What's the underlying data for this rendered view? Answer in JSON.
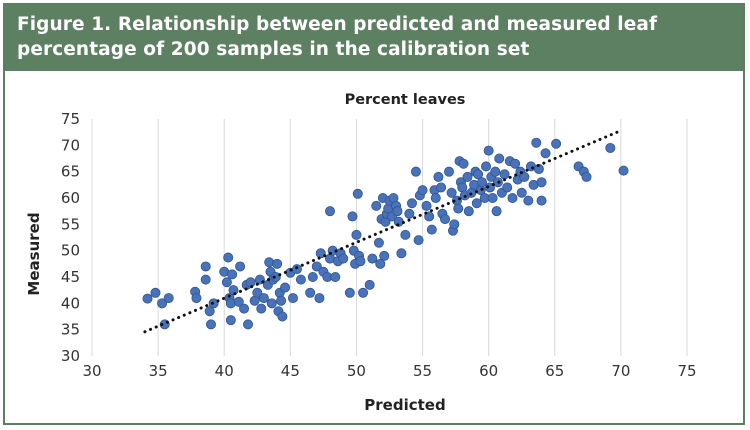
{
  "figure": {
    "caption": "Figure 1. Relationship between predicted and measured leaf percentage of 200 samples in the calibration set"
  },
  "colors": {
    "header_bg": "#5d8062",
    "border": "#5a7e5e",
    "point_fill": "#4a72b8",
    "point_stroke": "#2f5597",
    "trendline": "#111111"
  },
  "chart_data": {
    "type": "scatter",
    "title": "Percent leaves",
    "xlabel": "Predicted",
    "ylabel": "Measured",
    "xlim": [
      30,
      75
    ],
    "ylim": [
      30,
      75
    ],
    "xticks": [
      30,
      35,
      40,
      45,
      50,
      55,
      60,
      65,
      70,
      75
    ],
    "yticks": [
      30,
      35,
      40,
      45,
      50,
      55,
      60,
      65,
      70,
      75
    ],
    "grid": "vertical",
    "trendline": {
      "style": "dotted",
      "x": [
        34,
        70
      ],
      "y": [
        34.6,
        72.8
      ]
    },
    "series": [
      {
        "points": [
          [
            34.2,
            40.9
          ],
          [
            34.8,
            42.0
          ],
          [
            35.3,
            40.0
          ],
          [
            35.5,
            36.0
          ],
          [
            35.8,
            41.0
          ],
          [
            37.8,
            42.2
          ],
          [
            37.9,
            41.0
          ],
          [
            38.6,
            47.0
          ],
          [
            38.6,
            44.5
          ],
          [
            38.9,
            38.5
          ],
          [
            39.0,
            36.0
          ],
          [
            39.2,
            40.0
          ],
          [
            40.0,
            46.0
          ],
          [
            40.2,
            44.0
          ],
          [
            40.3,
            48.7
          ],
          [
            40.4,
            41.0
          ],
          [
            40.5,
            40.0
          ],
          [
            40.5,
            36.8
          ],
          [
            40.6,
            45.5
          ],
          [
            40.7,
            42.5
          ],
          [
            41.1,
            40.3
          ],
          [
            41.2,
            47.0
          ],
          [
            41.5,
            39.0
          ],
          [
            41.7,
            43.5
          ],
          [
            41.8,
            36.0
          ],
          [
            42.0,
            44.0
          ],
          [
            42.3,
            40.5
          ],
          [
            42.5,
            42.0
          ],
          [
            42.7,
            44.5
          ],
          [
            42.8,
            39.0
          ],
          [
            43.0,
            41.0
          ],
          [
            43.3,
            43.5
          ],
          [
            43.4,
            47.8
          ],
          [
            43.5,
            46.0
          ],
          [
            43.6,
            40.0
          ],
          [
            43.7,
            44.5
          ],
          [
            43.9,
            45.0
          ],
          [
            44.0,
            47.5
          ],
          [
            44.1,
            38.5
          ],
          [
            44.2,
            42.0
          ],
          [
            44.3,
            40.5
          ],
          [
            44.4,
            37.5
          ],
          [
            44.6,
            43.0
          ],
          [
            45.0,
            45.8
          ],
          [
            45.2,
            41.0
          ],
          [
            45.5,
            46.5
          ],
          [
            45.8,
            44.5
          ],
          [
            46.5,
            42.0
          ],
          [
            46.7,
            45.0
          ],
          [
            47.0,
            47.0
          ],
          [
            47.2,
            41.0
          ],
          [
            47.3,
            49.5
          ],
          [
            47.5,
            46.0
          ],
          [
            47.8,
            45.0
          ],
          [
            48.0,
            57.5
          ],
          [
            48.0,
            48.5
          ],
          [
            48.2,
            50.0
          ],
          [
            48.4,
            45.0
          ],
          [
            48.6,
            48.0
          ],
          [
            48.8,
            49.5
          ],
          [
            49.0,
            48.5
          ],
          [
            49.5,
            42.0
          ],
          [
            49.7,
            56.5
          ],
          [
            49.8,
            50.0
          ],
          [
            49.9,
            47.5
          ],
          [
            50.0,
            53.0
          ],
          [
            50.1,
            60.8
          ],
          [
            50.2,
            49.0
          ],
          [
            50.3,
            48.0
          ],
          [
            50.5,
            42.0
          ],
          [
            51.0,
            43.5
          ],
          [
            51.2,
            48.5
          ],
          [
            51.5,
            58.5
          ],
          [
            51.7,
            51.5
          ],
          [
            51.8,
            47.5
          ],
          [
            51.9,
            56.0
          ],
          [
            52.0,
            60.0
          ],
          [
            52.1,
            49.0
          ],
          [
            52.2,
            55.5
          ],
          [
            52.3,
            57.0
          ],
          [
            52.4,
            58.0
          ],
          [
            52.5,
            59.5
          ],
          [
            52.7,
            56.5
          ],
          [
            52.8,
            60.0
          ],
          [
            53.0,
            58.5
          ],
          [
            53.1,
            57.5
          ],
          [
            53.2,
            55.5
          ],
          [
            53.4,
            49.5
          ],
          [
            53.7,
            53.0
          ],
          [
            54.0,
            57.0
          ],
          [
            54.2,
            59.0
          ],
          [
            54.5,
            65.0
          ],
          [
            54.7,
            52.0
          ],
          [
            54.8,
            60.5
          ],
          [
            55.0,
            61.5
          ],
          [
            55.3,
            58.5
          ],
          [
            55.5,
            56.5
          ],
          [
            55.7,
            54.0
          ],
          [
            55.9,
            61.5
          ],
          [
            56.0,
            60.0
          ],
          [
            56.2,
            64.0
          ],
          [
            56.4,
            62.0
          ],
          [
            56.5,
            57.0
          ],
          [
            56.7,
            56.0
          ],
          [
            57.0,
            65.0
          ],
          [
            57.2,
            61.0
          ],
          [
            57.3,
            53.8
          ],
          [
            57.4,
            55.0
          ],
          [
            57.6,
            59.5
          ],
          [
            57.7,
            58.0
          ],
          [
            57.8,
            67.0
          ],
          [
            57.9,
            63.0
          ],
          [
            58.0,
            62.0
          ],
          [
            58.1,
            66.5
          ],
          [
            58.2,
            60.5
          ],
          [
            58.4,
            64.0
          ],
          [
            58.5,
            57.5
          ],
          [
            58.7,
            61.0
          ],
          [
            58.9,
            62.5
          ],
          [
            59.0,
            65.0
          ],
          [
            59.1,
            59.0
          ],
          [
            59.2,
            64.5
          ],
          [
            59.4,
            61.5
          ],
          [
            59.5,
            63.0
          ],
          [
            59.7,
            60.0
          ],
          [
            59.8,
            66.0
          ],
          [
            60.0,
            69.0
          ],
          [
            60.1,
            62.0
          ],
          [
            60.2,
            64.0
          ],
          [
            60.3,
            60.0
          ],
          [
            60.5,
            65.0
          ],
          [
            60.6,
            57.5
          ],
          [
            60.7,
            63.0
          ],
          [
            60.8,
            67.5
          ],
          [
            61.0,
            61.0
          ],
          [
            61.2,
            64.5
          ],
          [
            61.4,
            62.0
          ],
          [
            61.6,
            67.0
          ],
          [
            61.8,
            60.0
          ],
          [
            62.0,
            66.5
          ],
          [
            62.2,
            63.5
          ],
          [
            62.4,
            65.0
          ],
          [
            62.5,
            61.0
          ],
          [
            62.7,
            64.0
          ],
          [
            63.0,
            59.5
          ],
          [
            63.2,
            66.0
          ],
          [
            63.4,
            62.5
          ],
          [
            63.6,
            70.5
          ],
          [
            63.8,
            65.5
          ],
          [
            64.0,
            59.5
          ],
          [
            64.0,
            63.0
          ],
          [
            64.3,
            68.5
          ],
          [
            65.1,
            70.3
          ],
          [
            66.8,
            66.0
          ],
          [
            67.2,
            65.0
          ],
          [
            67.4,
            64.0
          ],
          [
            69.2,
            69.5
          ],
          [
            70.2,
            65.2
          ]
        ]
      }
    ]
  }
}
